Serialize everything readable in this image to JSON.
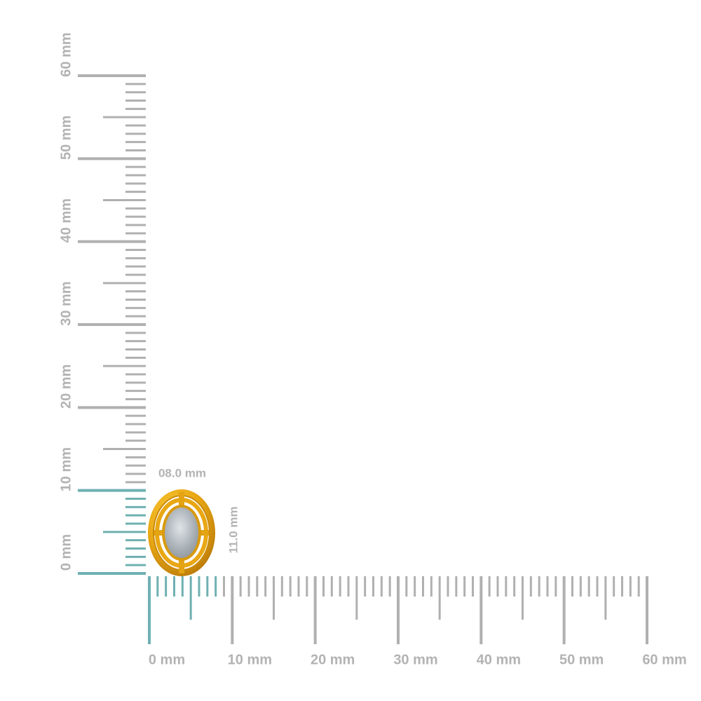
{
  "ruler": {
    "range": [
      0,
      60
    ],
    "ticks": [
      {
        "value": 0,
        "label": "0 mm"
      },
      {
        "value": 10,
        "label": "10 mm"
      },
      {
        "value": 20,
        "label": "20 mm"
      },
      {
        "value": 30,
        "label": "30 mm"
      },
      {
        "value": 40,
        "label": "40 mm"
      },
      {
        "value": 50,
        "label": "50 mm"
      },
      {
        "value": 60,
        "label": "60 mm"
      }
    ]
  },
  "dimensions": {
    "width": {
      "value": 8,
      "label": "08.0 mm"
    },
    "height": {
      "value": 11,
      "label": "11.0 mm"
    }
  }
}
